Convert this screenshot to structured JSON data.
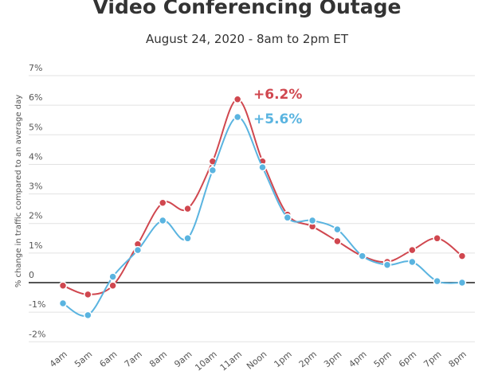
{
  "chart_data": {
    "type": "line",
    "title": "Video Conferencing Outage",
    "subtitle": "August 24, 2020 - 8am to 2pm ET",
    "xlabel": "",
    "ylabel": "% change in traffic compared to an average day",
    "ylim": [
      -2,
      7
    ],
    "yticks": [
      {
        "value": 7,
        "label": "7%"
      },
      {
        "value": 6,
        "label": "6%"
      },
      {
        "value": 5,
        "label": "5%"
      },
      {
        "value": 4,
        "label": "4%"
      },
      {
        "value": 3,
        "label": "3%"
      },
      {
        "value": 2,
        "label": "2%"
      },
      {
        "value": 1,
        "label": "1%"
      },
      {
        "value": 0,
        "label": "0"
      },
      {
        "value": -1,
        "label": "-1%"
      },
      {
        "value": -2,
        "label": "-2%"
      }
    ],
    "grid": true,
    "categories": [
      "4am",
      "5am",
      "6am",
      "7am",
      "8am",
      "9am",
      "10am",
      "11am",
      "Noon",
      "1pm",
      "2pm",
      "3pm",
      "4pm",
      "5pm",
      "6pm",
      "7pm",
      "8pm"
    ],
    "series": [
      {
        "color": "#d0474f",
        "values": [
          -0.1,
          -0.4,
          -0.1,
          1.3,
          2.7,
          2.5,
          4.1,
          6.2,
          4.1,
          2.3,
          1.9,
          1.4,
          0.9,
          0.7,
          1.1,
          1.5,
          0.9
        ]
      },
      {
        "color": "#5ab4e0",
        "values": [
          -0.7,
          -1.1,
          0.2,
          1.1,
          2.1,
          1.5,
          3.8,
          5.6,
          3.9,
          2.2,
          2.1,
          1.8,
          0.9,
          0.6,
          0.7,
          0.05,
          0.0
        ]
      }
    ],
    "annotations": [
      {
        "text": "+6.2%",
        "color": "#d0474f"
      },
      {
        "text": "+5.6%",
        "color": "#5ab4e0"
      }
    ]
  }
}
